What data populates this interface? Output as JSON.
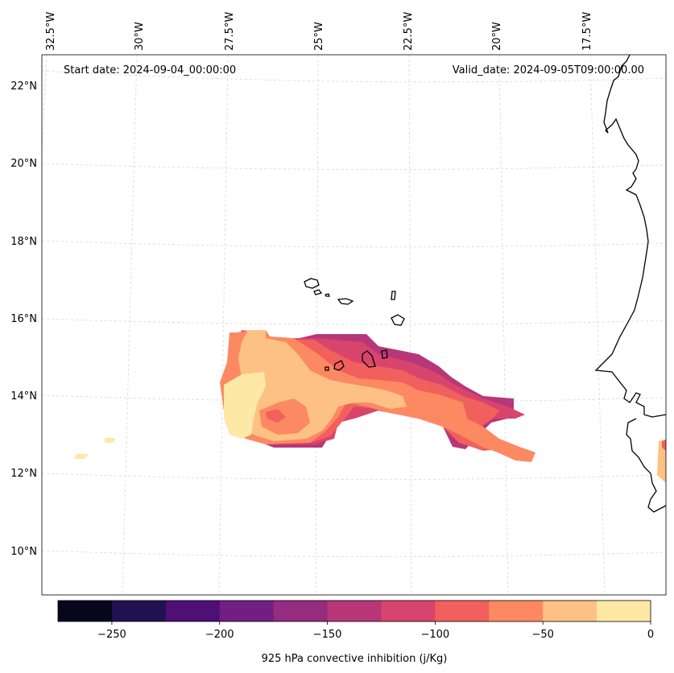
{
  "map": {
    "start_date": "Start date: 2024-09-04_00:00:00",
    "valid_date": "Valid_date: 2024-09-05T09:00:00.00",
    "lon_labels": [
      "32.5°W",
      "30°W",
      "27.5°W",
      "25°W",
      "22.5°W",
      "20°W",
      "17.5°W"
    ],
    "lat_labels": [
      "22°N",
      "20°N",
      "18°N",
      "16°N",
      "14°N",
      "12°N",
      "10°N"
    ]
  },
  "colorbar": {
    "title": "925 hPa convective inhibition (j/Kg)",
    "tick_labels": [
      "−250",
      "−200",
      "−150",
      "−100",
      "−50",
      "0"
    ],
    "levels": [
      -275,
      -250,
      -225,
      -200,
      -175,
      -150,
      -125,
      -100,
      -75,
      -50,
      -25,
      0
    ],
    "colors": [
      "#07061a",
      "#221150",
      "#4e0f76",
      "#721f81",
      "#952c80",
      "#b73779",
      "#d8456c",
      "#f1605d",
      "#fc8961",
      "#fec185",
      "#fde8a6"
    ]
  }
}
